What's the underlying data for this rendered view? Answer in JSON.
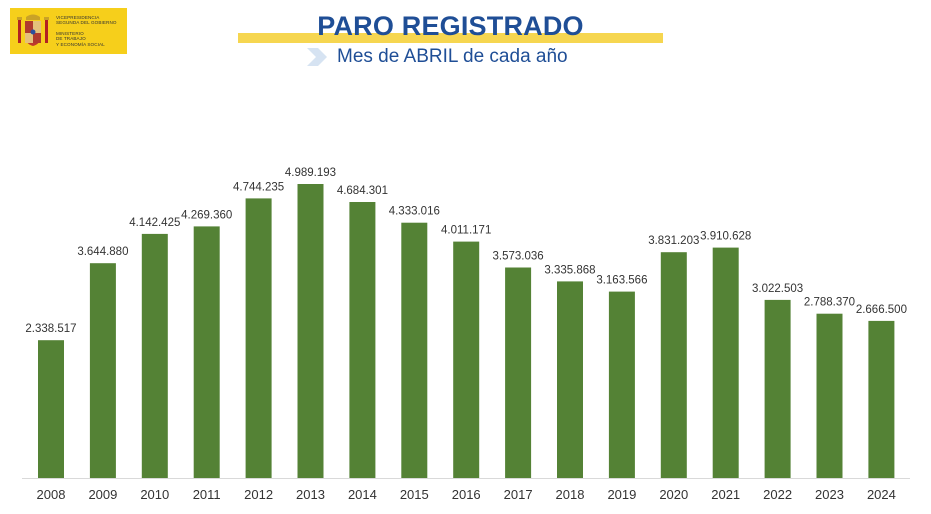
{
  "logo": {
    "line1": "Vicepresidencia",
    "line2": "Segunda del Gobierno",
    "line3": "Ministerio",
    "line4": "de Trabajo",
    "line5": "y Economía Social"
  },
  "title": "PARO REGISTRADO",
  "subtitle": "Mes de ABRIL de cada año",
  "colors": {
    "bar": "#548235",
    "title": "#1f4e96",
    "accent": "#f6d650",
    "logo_bg": "#f6cf1b"
  },
  "chart_data": {
    "type": "bar",
    "title": "PARO REGISTRADO",
    "subtitle": "Mes de ABRIL de cada año",
    "categories": [
      "2008",
      "2009",
      "2010",
      "2011",
      "2012",
      "2013",
      "2014",
      "2015",
      "2016",
      "2017",
      "2018",
      "2019",
      "2020",
      "2021",
      "2022",
      "2023",
      "2024"
    ],
    "values": [
      2338517,
      3644880,
      4142425,
      4269360,
      4744235,
      4989193,
      4684301,
      4333016,
      4011171,
      3573036,
      3335868,
      3163566,
      3831203,
      3910628,
      3022503,
      2788370,
      2666500
    ],
    "labels": [
      "2.338.517",
      "3.644.880",
      "4.142.425",
      "4.269.360",
      "4.744.235",
      "4.989.193",
      "4.684.301",
      "4.333.016",
      "4.011.171",
      "3.573.036",
      "3.335.868",
      "3.163.566",
      "3.831.203",
      "3.910.628",
      "3.022.503",
      "2.788.370",
      "2.666.500"
    ],
    "ylim": [
      0,
      4989193
    ],
    "grid": false,
    "legend": "none"
  }
}
